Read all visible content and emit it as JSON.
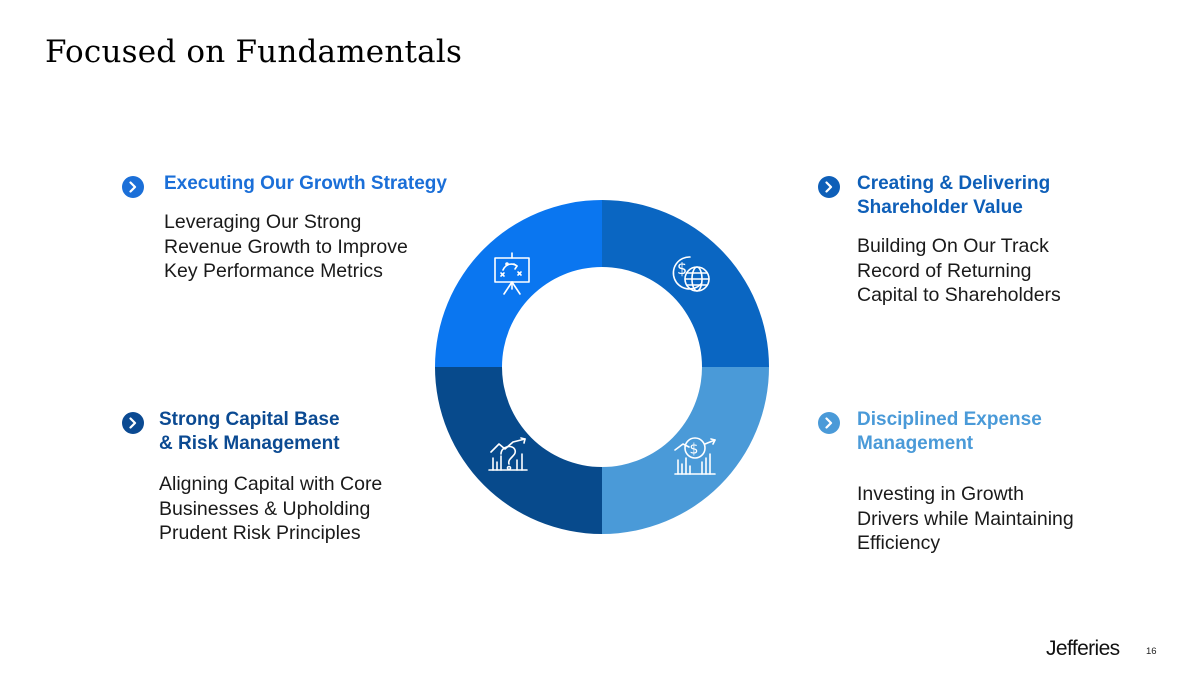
{
  "page": {
    "title": "Focused on Fundamentals",
    "page_number": "16",
    "logo_text": "Jefferies"
  },
  "colors": {
    "q1_top_left": "#0a76f0",
    "q2_top_right": "#0a66c2",
    "q3_bottom_right": "#4a9ad8",
    "q4_bottom_left": "#074a8c"
  },
  "sections": {
    "top_left": {
      "heading": "Executing Our Growth Strategy",
      "lines": [
        "Leveraging Our Strong",
        "Revenue Growth to Improve",
        "Key Performance Metrics"
      ],
      "icon": "strategy-board-icon"
    },
    "top_right": {
      "heading_lines": [
        "Creating & Delivering",
        "Shareholder Value"
      ],
      "lines": [
        "Building On Our Track",
        "Record of Returning",
        "Capital to Shareholders"
      ],
      "icon": "dollar-globe-icon"
    },
    "bottom_left": {
      "heading_lines": [
        "Strong Capital Base",
        "& Risk Management"
      ],
      "lines": [
        "Aligning Capital with Core",
        "Businesses & Upholding",
        "Prudent Risk Principles"
      ],
      "icon": "risk-analysis-chart-icon"
    },
    "bottom_right": {
      "heading_lines": [
        "Disciplined Expense",
        "Management"
      ],
      "lines": [
        "Investing in Growth",
        "Drivers while Maintaining",
        "Efficiency"
      ],
      "icon": "dollar-growth-chart-icon"
    }
  }
}
